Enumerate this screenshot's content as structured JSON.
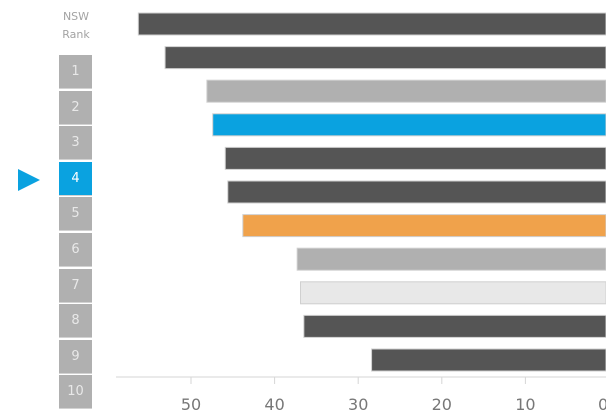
{
  "rank_header": [
    "NSW",
    "Rank"
  ],
  "ranks": [
    "1",
    "2",
    "3",
    "4",
    "5",
    "6",
    "7",
    "8",
    "9",
    "10"
  ],
  "highlight_rank_index": 3,
  "colors": {
    "dark": "#555555",
    "gray": "#b0b0b0",
    "light": "#e8e8e8",
    "highlight": "#0aa2e0",
    "orange": "#f0a24b"
  },
  "chart_data": {
    "type": "bar",
    "orientation": "horizontal",
    "x_reversed": true,
    "xlim": [
      0,
      56.6
    ],
    "ticks": [
      50,
      40,
      30,
      20,
      10,
      0
    ],
    "tick_labels": [
      "50",
      "40",
      "30",
      "20",
      "10",
      "0"
    ],
    "grid": false,
    "values": [
      56.3,
      53.1,
      48.1,
      47.4,
      45.9,
      45.6,
      43.8,
      37.3,
      36.9,
      36.5,
      28.4
    ],
    "bar_colors": [
      "dark",
      "dark",
      "gray",
      "highlight",
      "dark",
      "dark",
      "orange",
      "gray",
      "light",
      "dark",
      "dark"
    ]
  }
}
